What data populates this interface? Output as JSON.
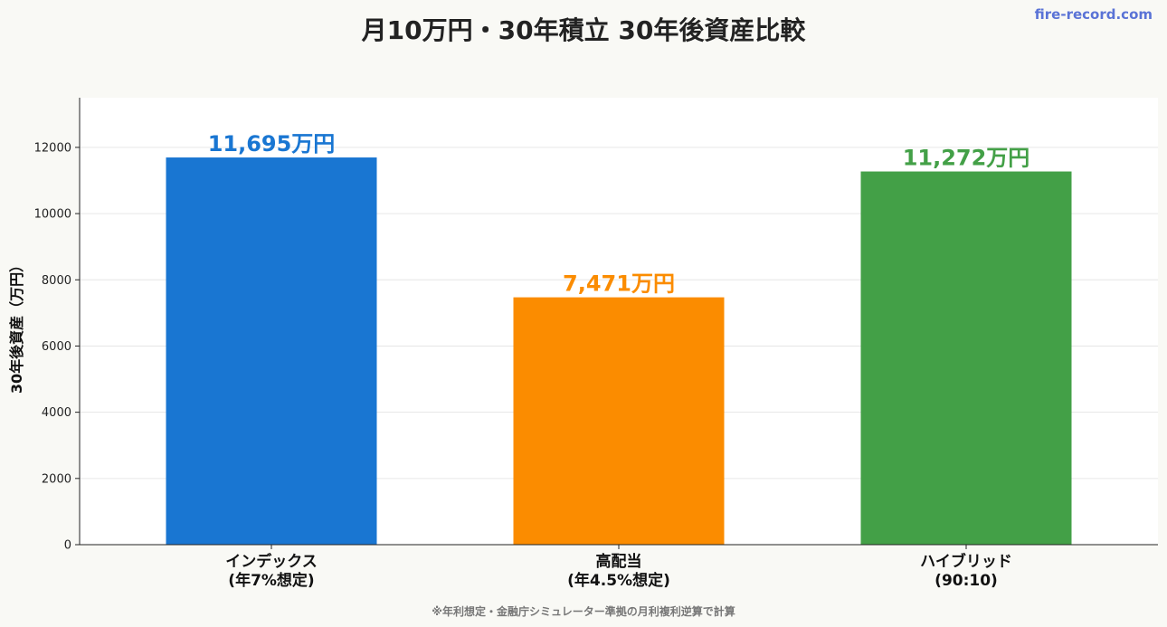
{
  "chart_data": {
    "type": "bar",
    "title": "月10万円・30年積立 30年後資産比較",
    "ylabel": "30年後資産（万円）",
    "xlabel": "",
    "ylim": [
      0,
      13500
    ],
    "yticks": [
      0,
      2000,
      4000,
      6000,
      8000,
      10000,
      12000
    ],
    "grid": true,
    "categories": [
      [
        "インデックス",
        "(年7%想定)"
      ],
      [
        "高配当",
        "(年4.5%想定)"
      ],
      [
        "ハイブリッド",
        "(90:10)"
      ]
    ],
    "values": [
      11695,
      7471,
      11272
    ],
    "data_labels": [
      "11,695万円",
      "7,471万円",
      "11,272万円"
    ],
    "colors": [
      "#1976d2",
      "#fb8c00",
      "#43a047"
    ]
  },
  "watermark": "fire-record.com",
  "footnote": "※年利想定・金融庁シミュレーター準拠の月利複利逆算で計算"
}
